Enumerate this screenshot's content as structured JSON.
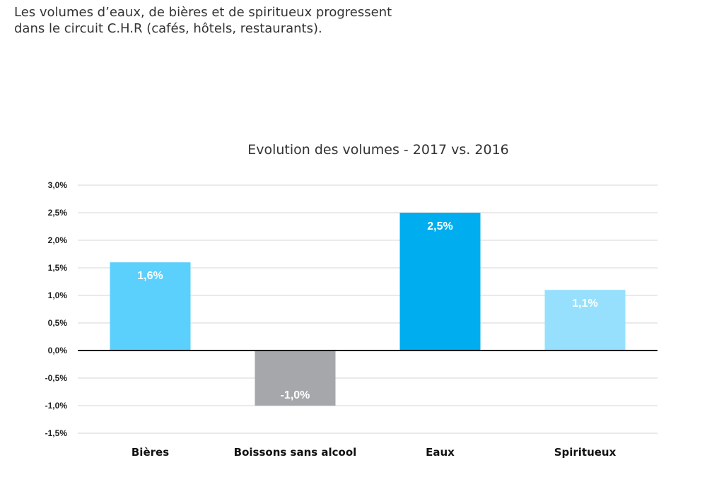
{
  "intro": {
    "line1": "Les volumes d’eaux, de bières et de spiritueux progressent",
    "line2": "dans le circuit C.H.R (cafés, hôtels, restaurants)."
  },
  "chart_data": {
    "type": "bar",
    "title": "Evolution des volumes - 2017 vs. 2016",
    "xlabel": "",
    "ylabel": "",
    "categories": [
      "Bières",
      "Boissons sans alcool",
      "Eaux",
      "Spiritueux"
    ],
    "values": [
      1.6,
      -1.0,
      2.5,
      1.1
    ],
    "data_labels": [
      "1,6%",
      "-1,0%",
      "2,5%",
      "1,1%"
    ],
    "colors": [
      "#5bd0fd",
      "#a6a7aa",
      "#00adee",
      "#96e0fd"
    ],
    "ylim": [
      -1.5,
      3.0
    ],
    "yticks": [
      3.0,
      2.5,
      2.0,
      1.5,
      1.0,
      0.5,
      0.0,
      -0.5,
      -1.0,
      -1.5
    ],
    "ytick_labels": [
      "3,0%",
      "2,5%",
      "2,0%",
      "1,5%",
      "1,0%",
      "0,5%",
      "0,0%",
      "-0,5%",
      "-1,0%",
      "-1,5%"
    ],
    "grid": true,
    "legend": "none"
  }
}
